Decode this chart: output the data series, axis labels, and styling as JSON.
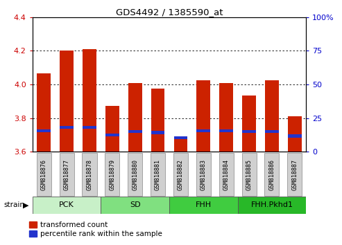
{
  "title": "GDS4492 / 1385590_at",
  "samples": [
    "GSM818876",
    "GSM818877",
    "GSM818878",
    "GSM818879",
    "GSM818880",
    "GSM818881",
    "GSM818882",
    "GSM818883",
    "GSM818884",
    "GSM818885",
    "GSM818886",
    "GSM818887"
  ],
  "red_values": [
    4.065,
    4.2,
    4.21,
    3.875,
    4.01,
    3.975,
    3.675,
    4.025,
    4.01,
    3.935,
    4.025,
    3.81
  ],
  "blue_values": [
    3.725,
    3.745,
    3.745,
    3.7,
    3.72,
    3.715,
    3.685,
    3.725,
    3.725,
    3.72,
    3.72,
    3.695
  ],
  "y_min": 3.6,
  "y_max": 4.4,
  "y_ticks_left": [
    3.6,
    3.8,
    4.0,
    4.2,
    4.4
  ],
  "y_ticks_right_labels": [
    "0",
    "25",
    "50",
    "75",
    "100%"
  ],
  "y_ticks_right_pct": [
    0,
    25,
    50,
    75,
    100
  ],
  "groups": [
    {
      "label": "PCK",
      "start": 0,
      "end": 3,
      "color": "#c8f0c8"
    },
    {
      "label": "SD",
      "start": 3,
      "end": 6,
      "color": "#80e080"
    },
    {
      "label": "FHH",
      "start": 6,
      "end": 9,
      "color": "#40cc40"
    },
    {
      "label": "FHH.Pkhd1",
      "start": 9,
      "end": 12,
      "color": "#28b828"
    }
  ],
  "red_color": "#cc2200",
  "blue_color": "#2233cc",
  "bar_base": 3.6,
  "tick_bg_color": "#d0d0d0",
  "legend_red": "transformed count",
  "legend_blue": "percentile rank within the sample",
  "left_axis_color": "#cc0000",
  "right_axis_color": "#0000cc"
}
